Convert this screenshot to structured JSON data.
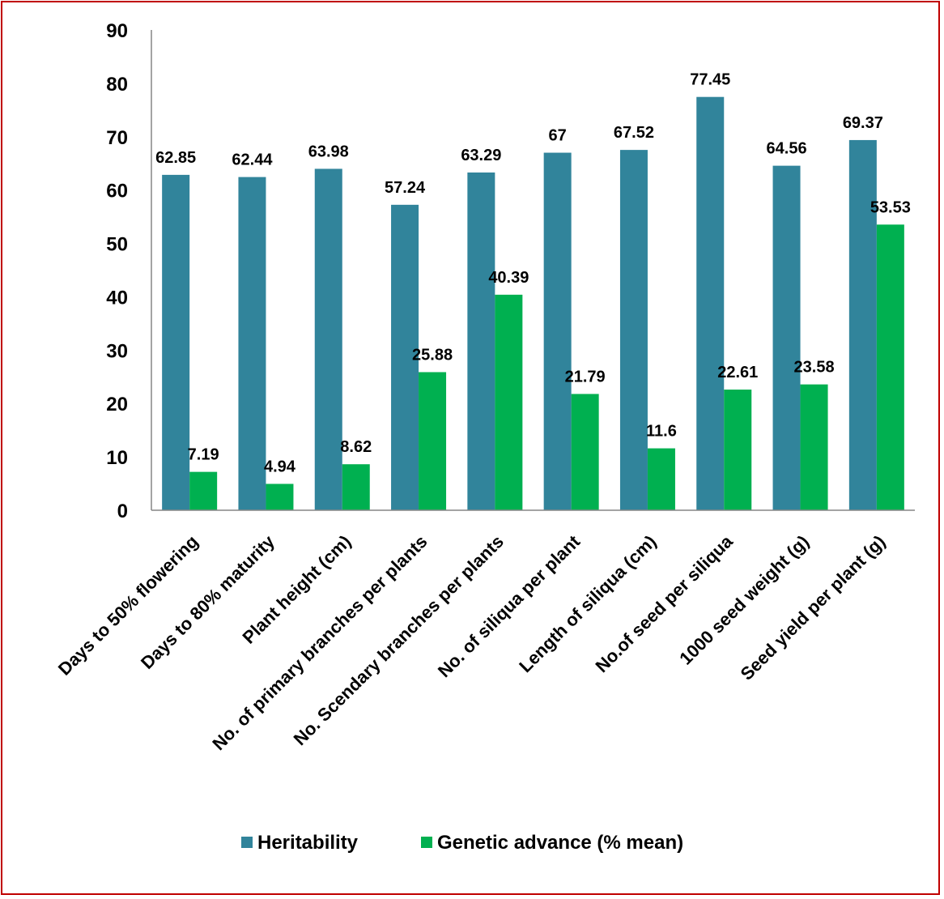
{
  "chart_data": {
    "type": "bar",
    "categories": [
      "Days to 50% flowering",
      "Days to 80% maturity",
      "Plant height (cm)",
      "No. of primary branches per plants",
      "No. Scendary branches per plants",
      "No. of siliqua per plant",
      "Length of siliqua (cm)",
      "No.of seed per siliqua",
      "1000 seed weight (g)",
      "Seed yield per plant (g)"
    ],
    "series": [
      {
        "name": "Heritability",
        "color": "#31849b",
        "values": [
          62.85,
          62.44,
          63.98,
          57.24,
          63.29,
          67,
          67.52,
          77.45,
          64.56,
          69.37
        ],
        "labels": [
          "62.85",
          "62.44",
          "63.98",
          "57.24",
          "63.29",
          "67",
          "67.52",
          "77.45",
          "64.56",
          "69.37"
        ]
      },
      {
        "name": "Genetic advance (% mean)",
        "color": "#00b050",
        "values": [
          7.19,
          4.94,
          8.62,
          25.88,
          40.39,
          21.79,
          11.6,
          22.61,
          23.58,
          53.53
        ],
        "labels": [
          "7.19",
          "4.94",
          "8.62",
          "25.88",
          "40.39",
          "21.79",
          "11.6",
          "22.61",
          "23.58",
          "53.53"
        ]
      }
    ],
    "ylim": [
      0,
      90
    ],
    "yticks": [
      "0",
      "10",
      "20",
      "30",
      "40",
      "50",
      "60",
      "70",
      "80",
      "90"
    ],
    "grid": false,
    "legend_position": "bottom",
    "border_color": "#c00000"
  }
}
